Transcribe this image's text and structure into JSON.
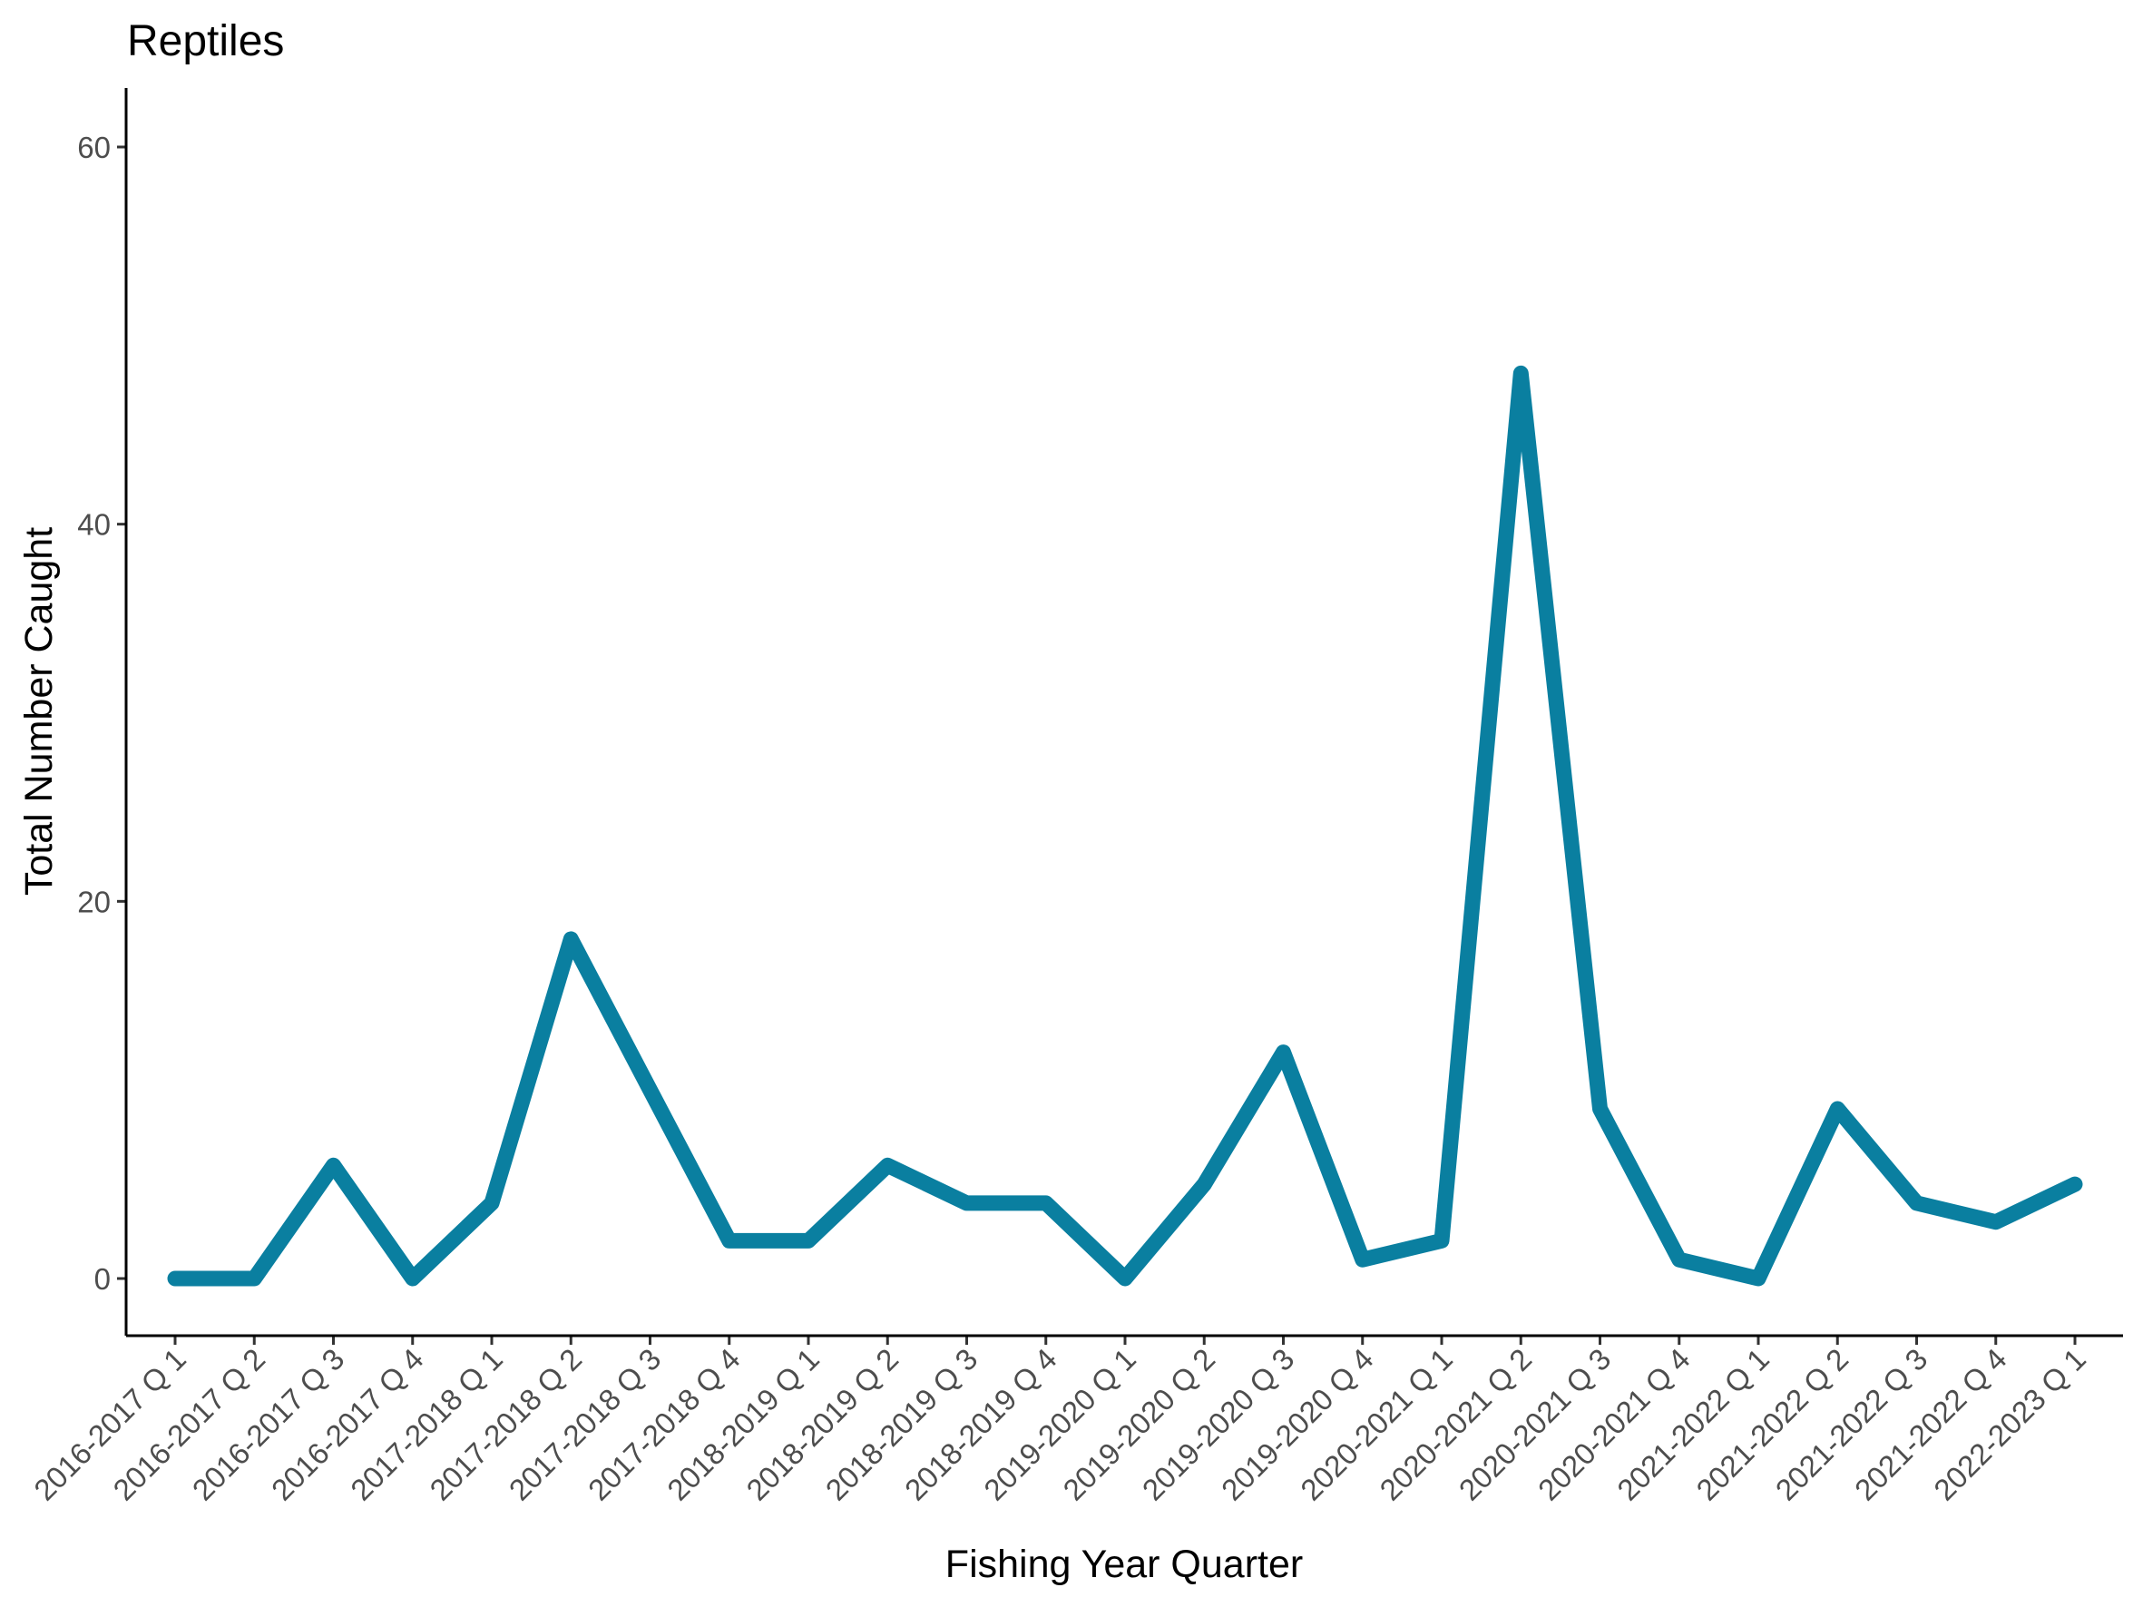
{
  "chart_data": {
    "type": "line",
    "title": "Reptiles",
    "xlabel": "Fishing Year Quarter",
    "ylabel": "Total Number Caught",
    "categories": [
      "2016-2017 Q 1",
      "2016-2017 Q 2",
      "2016-2017 Q 3",
      "2016-2017 Q 4",
      "2017-2018 Q 1",
      "2017-2018 Q 2",
      "2017-2018 Q 3",
      "2017-2018 Q 4",
      "2018-2019 Q 1",
      "2018-2019 Q 2",
      "2018-2019 Q 3",
      "2018-2019 Q 4",
      "2019-2020 Q 1",
      "2019-2020 Q 2",
      "2019-2020 Q 3",
      "2019-2020 Q 4",
      "2020-2021 Q 1",
      "2020-2021 Q 2",
      "2020-2021 Q 3",
      "2020-2021 Q 4",
      "2021-2022 Q 1",
      "2021-2022 Q 2",
      "2021-2022 Q 3",
      "2021-2022 Q 4",
      "2022-2023 Q 1"
    ],
    "series": [
      {
        "color": "#0a7fa0",
        "values": [
          0,
          0,
          6,
          0,
          4,
          18,
          10,
          2,
          2,
          6,
          4,
          4,
          0,
          5,
          12,
          1,
          2,
          48,
          9,
          1,
          0,
          9,
          4,
          3,
          5
        ]
      }
    ],
    "yticks": [
      0,
      20,
      40,
      60
    ],
    "ylim": [
      -3,
      63
    ],
    "grid": false,
    "legend": "none"
  }
}
